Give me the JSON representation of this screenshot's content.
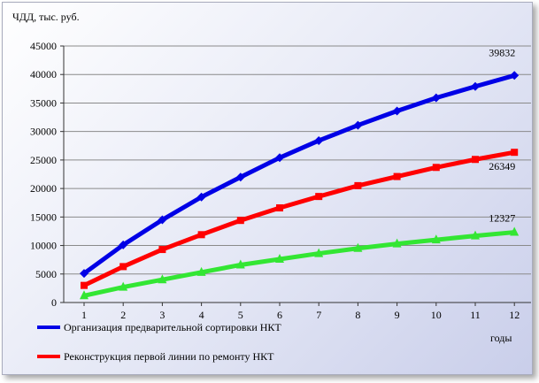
{
  "chart_data": {
    "type": "line",
    "ylabel": "ЧДД, тыс. руб.",
    "xlabel": "годы",
    "categories": [
      "1",
      "2",
      "3",
      "4",
      "5",
      "6",
      "7",
      "8",
      "9",
      "10",
      "11",
      "12"
    ],
    "ylim": [
      0,
      45000
    ],
    "yticks": [
      "0",
      "5000",
      "10000",
      "15000",
      "20000",
      "25000",
      "30000",
      "35000",
      "40000",
      "45000"
    ],
    "grid": true,
    "legend_position": "bottom-left",
    "series": [
      {
        "name": "Организация предварительной сортировки НКТ",
        "color": "#0000e6",
        "marker": "diamond",
        "values": [
          5100,
          10100,
          14500,
          18500,
          22000,
          25400,
          28400,
          31100,
          33600,
          35900,
          37900,
          39832
        ],
        "end_label": "39832"
      },
      {
        "name": "Реконструкция первой линии по ремонту НКТ",
        "color": "#ff0000",
        "marker": "square",
        "values": [
          3000,
          6300,
          9300,
          11900,
          14400,
          16600,
          18600,
          20500,
          22100,
          23700,
          25100,
          26349
        ],
        "end_label": "26349"
      },
      {
        "name": "",
        "color": "#33e633",
        "marker": "triangle",
        "values": [
          1200,
          2700,
          4000,
          5300,
          6600,
          7600,
          8600,
          9500,
          10300,
          11000,
          11700,
          12327
        ],
        "end_label": "12327"
      }
    ]
  }
}
